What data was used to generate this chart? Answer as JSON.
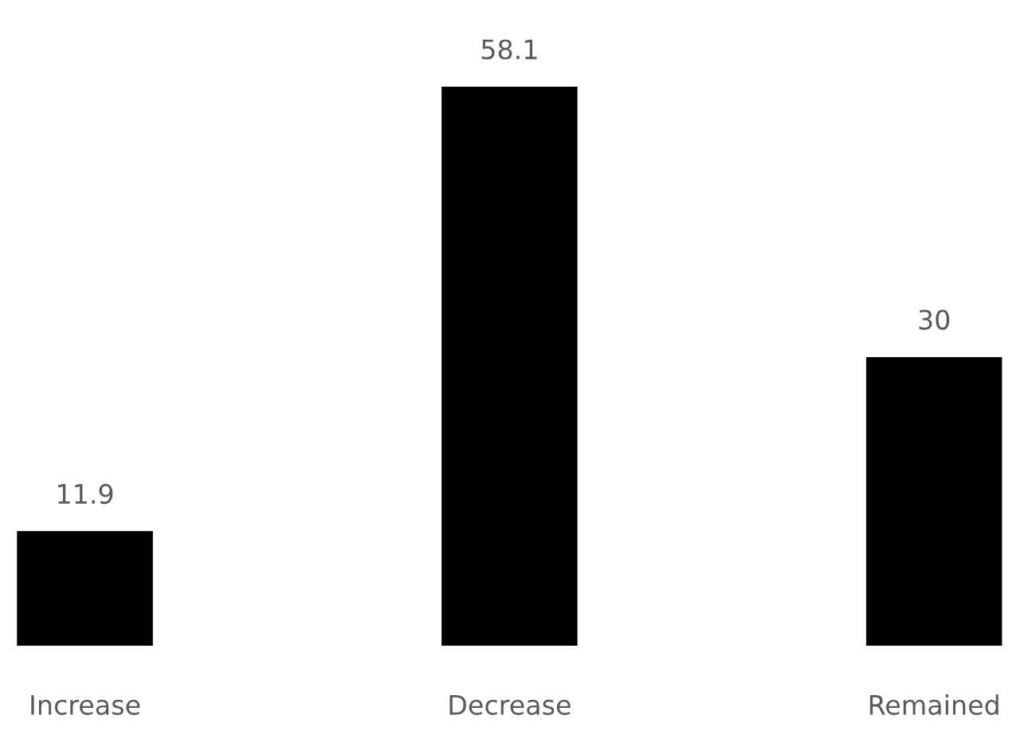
{
  "chart_data": {
    "type": "bar",
    "categories": [
      "Increase",
      "Decrease",
      "Remained"
    ],
    "values": [
      11.9,
      58.1,
      30
    ],
    "color": "#000000",
    "data_labels": true,
    "grid": false,
    "legend": false
  }
}
